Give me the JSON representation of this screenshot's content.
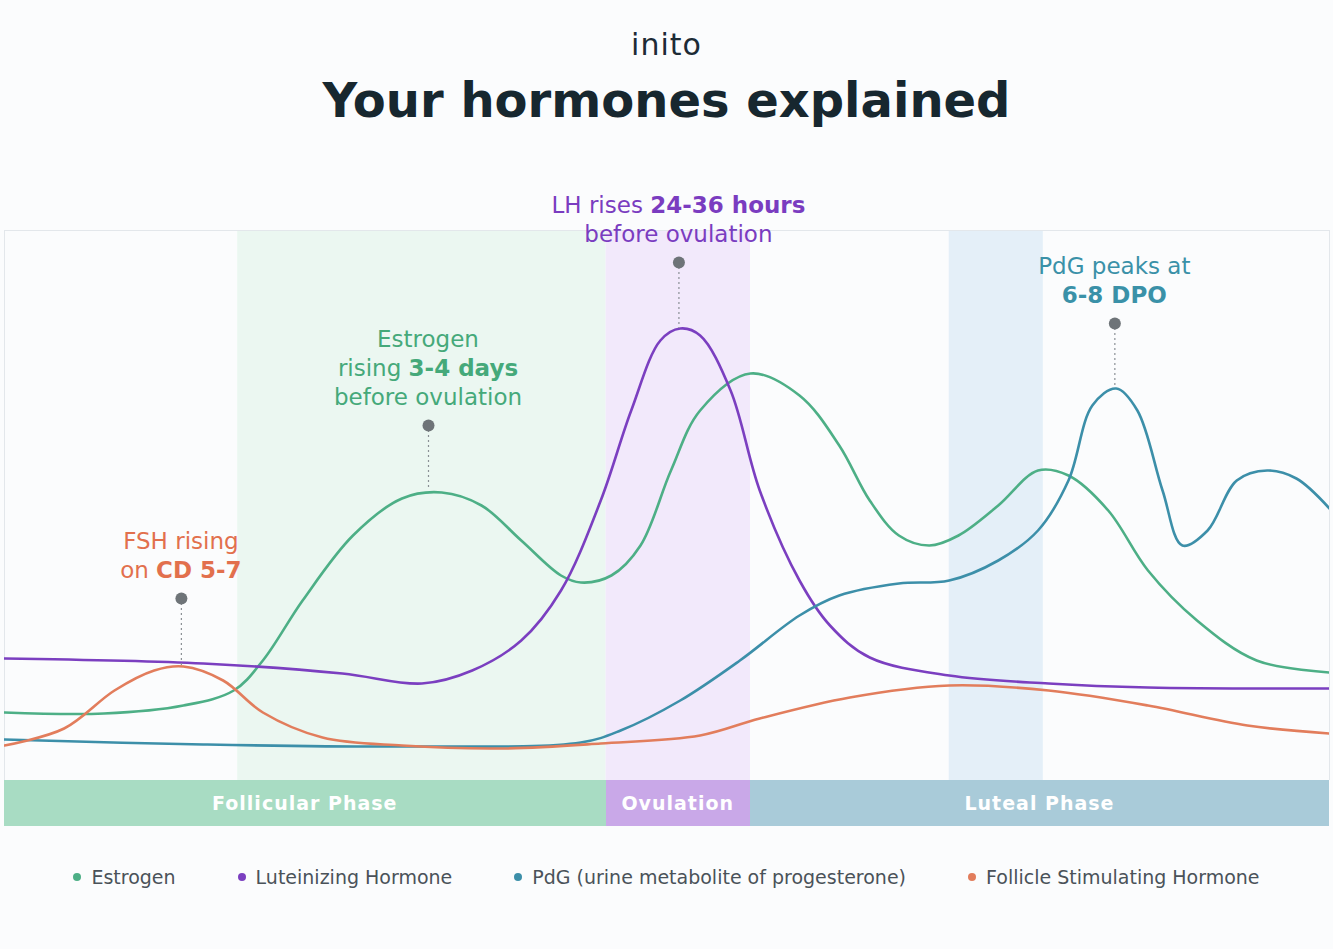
{
  "chart_data": {
    "type": "line",
    "brand": "inito",
    "title": "Your hormones explained",
    "xlim": [
      0,
      100
    ],
    "ylim": [
      0,
      110
    ],
    "tick_labels": false,
    "series": [
      {
        "name": "Estrogen",
        "color": "#4daf86",
        "x": [
          0,
          7.5,
          13.5,
          17.3,
          19.5,
          22.5,
          26.3,
          30,
          33,
          36,
          39,
          42,
          43.5,
          45.8,
          48,
          50.3,
          52.5,
          56.3,
          60,
          63,
          65.3,
          67.5,
          69.8,
          72,
          75,
          78,
          80.3,
          83.3,
          86.3,
          90,
          94.5,
          100
        ],
        "values": [
          13.6,
          13.4,
          15,
          18,
          24,
          36,
          49,
          56.4,
          57.6,
          55,
          48,
          41,
          39.6,
          41,
          47,
          62,
          74,
          81.4,
          77,
          67,
          56,
          49,
          47,
          49,
          55,
          62,
          61,
          54,
          42,
          32,
          24,
          21.6
        ]
      },
      {
        "name": "Luteinizing Hormone",
        "color": "#7b3fc0",
        "x": [
          0,
          15,
          25.5,
          31.5,
          35.3,
          39,
          42,
          45,
          47.3,
          49.5,
          51,
          52.5,
          54.8,
          57,
          60,
          62.3,
          65.3,
          71.3,
          78.8,
          86.3,
          100
        ],
        "values": [
          24.4,
          23.4,
          21.4,
          19.4,
          22,
          28,
          38,
          56,
          74,
          88,
          90.4,
          89,
          78,
          58,
          40,
          31,
          24.6,
          21,
          19.4,
          18.6,
          18.4
        ]
      },
      {
        "name": "PdG (urine metabolite of progesterone)",
        "color": "#3c8fa9",
        "x": [
          0,
          15,
          30,
          43.5,
          46.5,
          51,
          55.5,
          60,
          63,
          67.5,
          71.3,
          75,
          78,
          80.3,
          82.1,
          83.9,
          85.5,
          87.4,
          88.9,
          90.8,
          93,
          95.3,
          97.5,
          100
        ],
        "values": [
          8.2,
          7.2,
          6.8,
          7.6,
          10,
          16,
          24,
          33,
          37,
          39.4,
          40,
          44,
          50,
          60,
          75,
          78.4,
          74,
          58,
          47,
          50,
          60,
          62,
          60.4,
          54.4
        ]
      },
      {
        "name": "Follicle Stimulating Hormone",
        "color": "#e27d5c",
        "x": [
          0,
          4.5,
          8.3,
          11.3,
          13.5,
          16.5,
          19.5,
          24,
          30,
          37.5,
          45,
          52.5,
          57,
          63.8,
          71.3,
          78.8,
          86.3,
          93.8,
          100
        ],
        "values": [
          7,
          10.4,
          18,
          22,
          22.8,
          20,
          13.6,
          8.6,
          7,
          6.4,
          7.4,
          9,
          12.4,
          16.6,
          19,
          18,
          15,
          11,
          9.4
        ]
      }
    ],
    "annotations": [
      {
        "lines": [
          "FSH rising",
          "on CD 5-7"
        ],
        "bold": "CD 5-7",
        "color": "#e2704d",
        "x": 13.35,
        "y": 36.4,
        "y_end": 22.8
      },
      {
        "lines": [
          "Estrogen",
          "rising 3-4 days",
          "before ovulation"
        ],
        "bold": "3-4 days",
        "color": "#45a97a",
        "x": 32,
        "y": 71,
        "y_end": 58
      },
      {
        "lines": [
          "LH rises 24-36 hours",
          "before ovulation"
        ],
        "bold": "24-36 hours",
        "color": "#7a3cc0",
        "x": 50.9,
        "y": 103.6,
        "y_end": 90.4
      },
      {
        "lines": [
          "PdG peaks at",
          "6-8 DPO"
        ],
        "bold": "6-8 DPO",
        "color": "#3a91a8",
        "x": 83.8,
        "y": 91.4,
        "y_end": 79
      }
    ],
    "highlights": [
      {
        "start": 17.6,
        "end": 45.4,
        "color": "#e6f5ec"
      },
      {
        "start": 45.4,
        "end": 56.3,
        "color": "#efe3fa"
      },
      {
        "start": 71.3,
        "end": 78.4,
        "color": "#dcebf6"
      }
    ],
    "phases": [
      {
        "name": "Follicular Phase",
        "start": 0,
        "end": 45.4,
        "color": "#a8dcc3"
      },
      {
        "name": "Ovulation",
        "start": 45.4,
        "end": 56.3,
        "color": "#c9a8e8"
      },
      {
        "name": "Luteal Phase",
        "start": 56.3,
        "end": 100,
        "color": "#a9cbd9"
      }
    ]
  }
}
